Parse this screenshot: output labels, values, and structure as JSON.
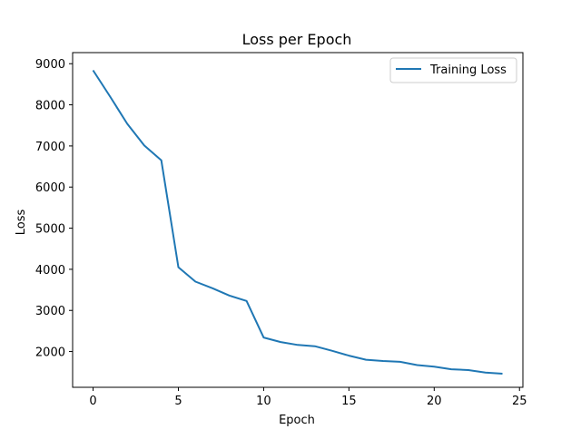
{
  "chart_data": {
    "type": "line",
    "title": "Loss per Epoch",
    "xlabel": "Epoch",
    "ylabel": "Loss",
    "xlim": [
      -1.2,
      25.2
    ],
    "ylim": [
      1130,
      9270
    ],
    "xticks": [
      0,
      5,
      10,
      15,
      20,
      25
    ],
    "yticks": [
      2000,
      3000,
      4000,
      5000,
      6000,
      7000,
      8000,
      9000
    ],
    "grid": false,
    "legend_position": "upper right",
    "series": [
      {
        "name": "Training Loss",
        "color": "#1f77b4",
        "x": [
          0,
          1,
          2,
          3,
          4,
          5,
          6,
          7,
          8,
          9,
          10,
          11,
          12,
          13,
          14,
          15,
          16,
          17,
          18,
          19,
          20,
          21,
          22,
          23,
          24
        ],
        "y": [
          8840,
          8200,
          7540,
          7010,
          6650,
          4050,
          3700,
          3540,
          3360,
          3230,
          2340,
          2230,
          2160,
          2130,
          2020,
          1900,
          1800,
          1770,
          1750,
          1670,
          1630,
          1570,
          1550,
          1490,
          1460
        ]
      }
    ]
  }
}
